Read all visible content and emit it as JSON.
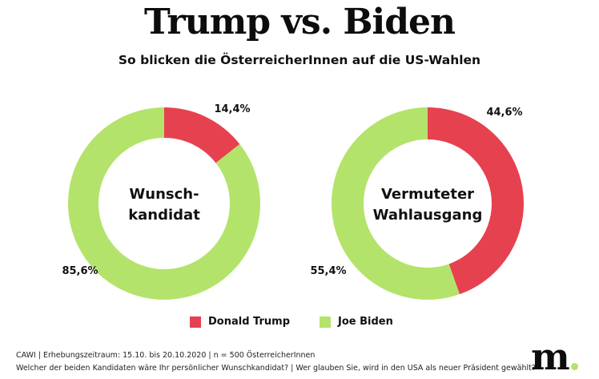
{
  "header": {
    "title": "Trump vs. Biden",
    "subtitle": "So blicken die ÖsterreicherInnen auf die US-Wahlen"
  },
  "colors": {
    "trump": "#e5414f",
    "biden": "#b3e36a",
    "logo_dot": "#b3e36a"
  },
  "chart_data": [
    {
      "type": "pie",
      "variant": "donut",
      "title": "Wunschkandidat",
      "center_lines": [
        "Wunsch-",
        "kandidat"
      ],
      "series": [
        {
          "name": "Donald Trump",
          "value": 14.4,
          "label": "14,4%",
          "color_key": "trump"
        },
        {
          "name": "Joe Biden",
          "value": 85.6,
          "label": "85,6%",
          "color_key": "biden"
        }
      ],
      "start": "top",
      "direction": "clockwise"
    },
    {
      "type": "pie",
      "variant": "donut",
      "title": "Vermuteter Wahlausgang",
      "center_lines": [
        "Vermuteter",
        "Wahlausgang"
      ],
      "series": [
        {
          "name": "Donald Trump",
          "value": 44.6,
          "label": "44,6%",
          "color_key": "trump"
        },
        {
          "name": "Joe Biden",
          "value": 55.4,
          "label": "55,4%",
          "color_key": "biden"
        }
      ],
      "start": "top",
      "direction": "clockwise"
    }
  ],
  "legend": {
    "items": [
      {
        "label": "Donald Trump",
        "color_key": "trump"
      },
      {
        "label": "Joe Biden",
        "color_key": "biden"
      }
    ],
    "placement": "bottom-center"
  },
  "footer": {
    "line1": "CAWI | Erhebungszeitraum: 15.10. bis 20.10.2020 | n = 500 ÖsterreicherInnen",
    "line2": "Welcher der beiden Kandidaten wäre Ihr persönlicher Wunschkandidat? | Wer glauben Sie, wird in den USA als neuer Präsident gewählt?"
  },
  "logo": {
    "text": "m"
  }
}
